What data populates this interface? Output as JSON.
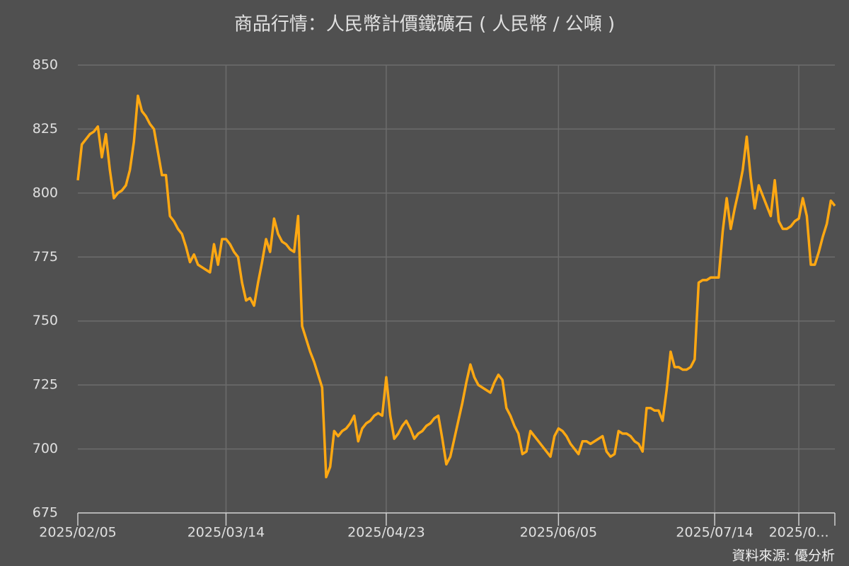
{
  "chart_data": {
    "type": "line",
    "title": "商品行情：人民幣計價鐵礦石 ( 人民幣 / 公噸 )",
    "source": "資料來源: 優分析",
    "categories": [
      "2025/02/05",
      null,
      null,
      null,
      null,
      null,
      null,
      null,
      null,
      null,
      null,
      null,
      null,
      null,
      null,
      null,
      null,
      null,
      null,
      null,
      null,
      null,
      null,
      null,
      null,
      null,
      null,
      null,
      null,
      null,
      null,
      null,
      null,
      null,
      null,
      null,
      null,
      "2025/03/14",
      null,
      null,
      null,
      null,
      null,
      null,
      null,
      null,
      null,
      null,
      null,
      null,
      null,
      null,
      null,
      null,
      null,
      null,
      null,
      null,
      null,
      null,
      null,
      null,
      null,
      null,
      null,
      null,
      null,
      null,
      null,
      null,
      null,
      null,
      null,
      null,
      null,
      null,
      null,
      "2025/04/23",
      null,
      null,
      null,
      null,
      null,
      null,
      null,
      null,
      null,
      null,
      null,
      null,
      null,
      null,
      null,
      null,
      null,
      null,
      null,
      null,
      null,
      null,
      null,
      null,
      null,
      null,
      null,
      null,
      null,
      null,
      null,
      null,
      null,
      null,
      null,
      null,
      null,
      null,
      null,
      null,
      null,
      null,
      "2025/06/05",
      null,
      null,
      null,
      null,
      null,
      null,
      null,
      null,
      null,
      null,
      null,
      null,
      null,
      null,
      null,
      null,
      null,
      null,
      null,
      null,
      null,
      null,
      null,
      null,
      null,
      null,
      null,
      null,
      null,
      null,
      null,
      null,
      null,
      null,
      null,
      null,
      null,
      null,
      "2025/07/14",
      null,
      null,
      null,
      null,
      null,
      null,
      null,
      null,
      null,
      null,
      null,
      null,
      null,
      null,
      null,
      null,
      null,
      null,
      null,
      null,
      "2025/0...",
      null,
      null,
      null,
      null,
      null,
      null,
      null,
      null,
      null
    ],
    "values": [
      805,
      819,
      821,
      823,
      824,
      826,
      814,
      823,
      809,
      798,
      800,
      801,
      803,
      809,
      820,
      838,
      832,
      830,
      827,
      825,
      816,
      807,
      807,
      791,
      789,
      786,
      784,
      779,
      773,
      776,
      772,
      771,
      770,
      769,
      780,
      772,
      782,
      782,
      780,
      777,
      775,
      765,
      758,
      759,
      756,
      765,
      773,
      782,
      777,
      790,
      784,
      781,
      780,
      778,
      777,
      791,
      748,
      743,
      738,
      734,
      729,
      724,
      689,
      693,
      707,
      705,
      707,
      708,
      710,
      713,
      703,
      708,
      710,
      711,
      713,
      714,
      713,
      728,
      713,
      704,
      706,
      709,
      711,
      708,
      704,
      706,
      707,
      709,
      710,
      712,
      713,
      704,
      694,
      697,
      704,
      711,
      718,
      726,
      733,
      728,
      725,
      724,
      723,
      722,
      726,
      729,
      727,
      716,
      713,
      709,
      706,
      698,
      699,
      707,
      705,
      703,
      701,
      699,
      697,
      705,
      708,
      707,
      705,
      702,
      700,
      698,
      703,
      703,
      702,
      703,
      704,
      705,
      699,
      697,
      698,
      707,
      706,
      706,
      705,
      703,
      702,
      699,
      716,
      716,
      715,
      715,
      711,
      723,
      738,
      732,
      732,
      731,
      731,
      732,
      735,
      765,
      766,
      766,
      767,
      767,
      767,
      785,
      798,
      786,
      794,
      801,
      809,
      822,
      806,
      794,
      803,
      799,
      795,
      791,
      805,
      789,
      786,
      786,
      787,
      789,
      790,
      798,
      791,
      772,
      772,
      777,
      783,
      788,
      797,
      795
    ],
    "color": "#ffa812",
    "ylim": [
      675,
      850
    ],
    "yticks": [
      675,
      700,
      725,
      750,
      775,
      800,
      825,
      850
    ],
    "grid": true
  }
}
